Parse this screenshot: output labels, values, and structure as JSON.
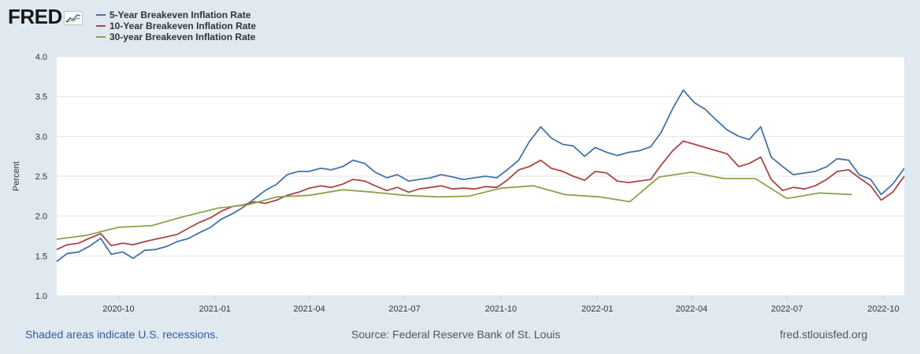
{
  "brand": {
    "logo_text": "FRED"
  },
  "footer": {
    "recession_note": "Shaded areas indicate U.S. recessions.",
    "source": "Source: Federal Reserve Bank of St. Louis",
    "site": "fred.stlouisfed.org"
  },
  "colors": {
    "frame_bg": "#e1e9f0",
    "plot_bg": "#ffffff",
    "series_5y": "#4572a7",
    "series_10y": "#aa4643",
    "series_30y": "#89a54e"
  },
  "chart_data": {
    "type": "line",
    "title": "",
    "xlabel": "",
    "ylabel": "Percent",
    "ylim": [
      1.0,
      4.0
    ],
    "yticks": [
      "1.0",
      "1.5",
      "2.0",
      "2.5",
      "3.0",
      "3.5",
      "4.0"
    ],
    "xlim": [
      "2020-08-03",
      "2022-10-21"
    ],
    "xticks": [
      "2020-10",
      "2021-01",
      "2021-04",
      "2021-07",
      "2021-10",
      "2022-01",
      "2022-04",
      "2022-07",
      "2022-10"
    ],
    "grid": "horizontal",
    "legend_position": "top-left",
    "series": [
      {
        "name": "5-Year Breakeven Inflation Rate",
        "color": "#4572a7",
        "x": [
          "2020-08-03",
          "2020-08-13",
          "2020-08-24",
          "2020-09-03",
          "2020-09-14",
          "2020-09-24",
          "2020-10-05",
          "2020-10-15",
          "2020-10-26",
          "2020-11-05",
          "2020-11-16",
          "2020-11-26",
          "2020-12-07",
          "2020-12-17",
          "2020-12-28",
          "2021-01-07",
          "2021-01-18",
          "2021-01-28",
          "2021-02-08",
          "2021-02-18",
          "2021-03-01",
          "2021-03-11",
          "2021-03-22",
          "2021-04-01",
          "2021-04-12",
          "2021-04-22",
          "2021-05-03",
          "2021-05-13",
          "2021-05-24",
          "2021-06-03",
          "2021-06-14",
          "2021-06-24",
          "2021-07-05",
          "2021-07-15",
          "2021-07-26",
          "2021-08-05",
          "2021-08-16",
          "2021-08-26",
          "2021-09-06",
          "2021-09-16",
          "2021-09-27",
          "2021-10-07",
          "2021-10-18",
          "2021-10-28",
          "2021-11-08",
          "2021-11-18",
          "2021-11-29",
          "2021-12-09",
          "2021-12-20",
          "2021-12-30",
          "2022-01-10",
          "2022-01-20",
          "2022-01-31",
          "2022-02-10",
          "2022-02-21",
          "2022-03-03",
          "2022-03-14",
          "2022-03-24",
          "2022-04-04",
          "2022-04-14",
          "2022-04-25",
          "2022-05-05",
          "2022-05-16",
          "2022-05-26",
          "2022-06-06",
          "2022-06-16",
          "2022-06-27",
          "2022-07-07",
          "2022-07-18",
          "2022-07-28",
          "2022-08-08",
          "2022-08-18",
          "2022-08-29",
          "2022-09-08",
          "2022-09-19",
          "2022-09-29",
          "2022-10-10",
          "2022-10-21"
        ],
        "values": [
          1.43,
          1.53,
          1.55,
          1.62,
          1.72,
          1.52,
          1.55,
          1.47,
          1.57,
          1.58,
          1.62,
          1.68,
          1.72,
          1.79,
          1.86,
          1.96,
          2.03,
          2.11,
          2.22,
          2.32,
          2.4,
          2.52,
          2.56,
          2.56,
          2.6,
          2.58,
          2.62,
          2.7,
          2.66,
          2.55,
          2.48,
          2.52,
          2.44,
          2.46,
          2.48,
          2.52,
          2.49,
          2.46,
          2.48,
          2.5,
          2.48,
          2.58,
          2.7,
          2.93,
          3.12,
          2.98,
          2.9,
          2.88,
          2.75,
          2.86,
          2.8,
          2.76,
          2.8,
          2.82,
          2.87,
          3.05,
          3.35,
          3.58,
          3.42,
          3.34,
          3.2,
          3.08,
          3.0,
          2.96,
          3.12,
          2.74,
          2.62,
          2.52,
          2.54,
          2.56,
          2.62,
          2.72,
          2.7,
          2.52,
          2.46,
          2.27,
          2.4,
          2.6
        ]
      },
      {
        "name": "10-Year Breakeven Inflation Rate",
        "color": "#aa4643",
        "x": [
          "2020-08-03",
          "2020-08-13",
          "2020-08-24",
          "2020-09-03",
          "2020-09-14",
          "2020-09-24",
          "2020-10-05",
          "2020-10-15",
          "2020-10-26",
          "2020-11-05",
          "2020-11-16",
          "2020-11-26",
          "2020-12-07",
          "2020-12-17",
          "2020-12-28",
          "2021-01-07",
          "2021-01-18",
          "2021-01-28",
          "2021-02-08",
          "2021-02-18",
          "2021-03-01",
          "2021-03-11",
          "2021-03-22",
          "2021-04-01",
          "2021-04-12",
          "2021-04-22",
          "2021-05-03",
          "2021-05-13",
          "2021-05-24",
          "2021-06-03",
          "2021-06-14",
          "2021-06-24",
          "2021-07-05",
          "2021-07-15",
          "2021-07-26",
          "2021-08-05",
          "2021-08-16",
          "2021-08-26",
          "2021-09-06",
          "2021-09-16",
          "2021-09-27",
          "2021-10-07",
          "2021-10-18",
          "2021-10-28",
          "2021-11-08",
          "2021-11-18",
          "2021-11-29",
          "2021-12-09",
          "2021-12-20",
          "2021-12-30",
          "2022-01-10",
          "2022-01-20",
          "2022-01-31",
          "2022-02-10",
          "2022-02-21",
          "2022-03-03",
          "2022-03-14",
          "2022-03-24",
          "2022-04-04",
          "2022-04-14",
          "2022-04-25",
          "2022-05-05",
          "2022-05-16",
          "2022-05-26",
          "2022-06-06",
          "2022-06-16",
          "2022-06-27",
          "2022-07-07",
          "2022-07-18",
          "2022-07-28",
          "2022-08-08",
          "2022-08-18",
          "2022-08-29",
          "2022-09-08",
          "2022-09-19",
          "2022-09-29",
          "2022-10-10",
          "2022-10-21"
        ],
        "values": [
          1.58,
          1.64,
          1.66,
          1.72,
          1.78,
          1.63,
          1.66,
          1.64,
          1.68,
          1.71,
          1.74,
          1.77,
          1.85,
          1.92,
          1.98,
          2.06,
          2.12,
          2.14,
          2.18,
          2.16,
          2.2,
          2.26,
          2.3,
          2.35,
          2.38,
          2.36,
          2.4,
          2.46,
          2.44,
          2.38,
          2.32,
          2.36,
          2.3,
          2.34,
          2.36,
          2.38,
          2.34,
          2.35,
          2.34,
          2.37,
          2.36,
          2.45,
          2.58,
          2.62,
          2.7,
          2.6,
          2.56,
          2.5,
          2.45,
          2.56,
          2.54,
          2.44,
          2.42,
          2.44,
          2.46,
          2.64,
          2.82,
          2.94,
          2.9,
          2.86,
          2.82,
          2.78,
          2.62,
          2.66,
          2.74,
          2.46,
          2.32,
          2.36,
          2.34,
          2.38,
          2.46,
          2.56,
          2.58,
          2.48,
          2.38,
          2.2,
          2.3,
          2.5
        ]
      },
      {
        "name": "30-year Breakeven Inflation Rate",
        "color": "#89a54e",
        "x": [
          "2020-08-03",
          "2020-09-01",
          "2020-10-01",
          "2020-11-02",
          "2020-12-01",
          "2021-01-04",
          "2021-02-01",
          "2021-03-01",
          "2021-04-01",
          "2021-05-03",
          "2021-06-01",
          "2021-07-01",
          "2021-08-02",
          "2021-09-01",
          "2021-10-01",
          "2021-11-01",
          "2021-12-01",
          "2022-01-03",
          "2022-02-01",
          "2022-03-01",
          "2022-04-01",
          "2022-05-02",
          "2022-06-01",
          "2022-07-01",
          "2022-08-01",
          "2022-09-01"
        ],
        "values": [
          1.71,
          1.76,
          1.86,
          1.88,
          1.99,
          2.1,
          2.14,
          2.24,
          2.26,
          2.33,
          2.3,
          2.26,
          2.24,
          2.25,
          2.35,
          2.38,
          2.27,
          2.24,
          2.18,
          2.49,
          2.55,
          2.47,
          2.47,
          2.22,
          2.29,
          2.27
        ]
      }
    ]
  }
}
